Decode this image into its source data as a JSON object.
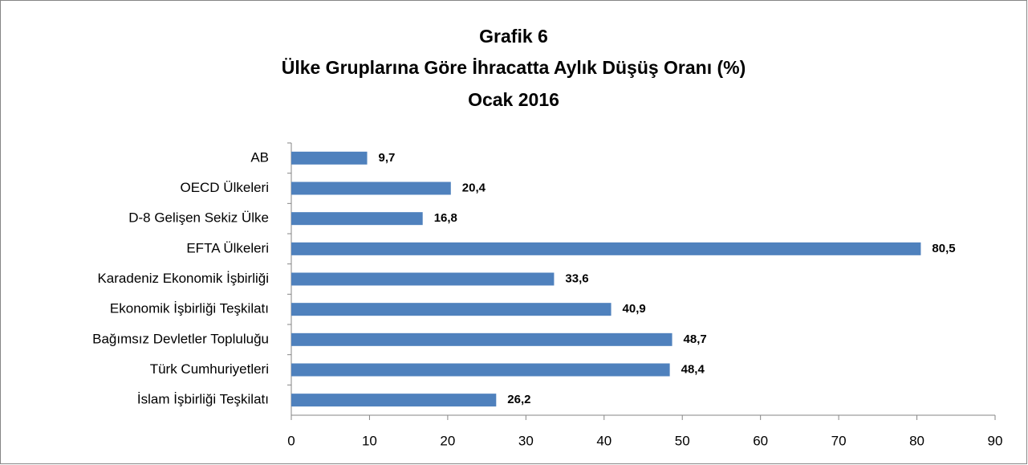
{
  "chart_data": {
    "type": "bar",
    "orientation": "horizontal",
    "title": [
      "Grafik 6",
      "Ülke Gruplarına Göre İhracatta Aylık Düşüş Oranı (%)",
      "Ocak 2016"
    ],
    "categories": [
      "AB",
      "OECD Ülkeleri",
      "D-8 Gelişen Sekiz Ülke",
      "EFTA Ülkeleri",
      "Karadeniz Ekonomik İşbirliği",
      "Ekonomik İşbirliği Teşkilatı",
      "Bağımsız Devletler Topluluğu",
      "Türk Cumhuriyetleri",
      "İslam İşbirliği Teşkilatı"
    ],
    "values": [
      9.7,
      20.4,
      16.8,
      80.5,
      33.6,
      40.9,
      48.7,
      48.4,
      26.2
    ],
    "value_labels": [
      "9,7",
      "20,4",
      "16,8",
      "80,5",
      "33,6",
      "40,9",
      "48,7",
      "48,4",
      "26,2"
    ],
    "color": "#4f81bd",
    "xlim": [
      0,
      90
    ],
    "xticks": [
      0,
      10,
      20,
      30,
      40,
      50,
      60,
      70,
      80,
      90
    ],
    "grid": false
  }
}
